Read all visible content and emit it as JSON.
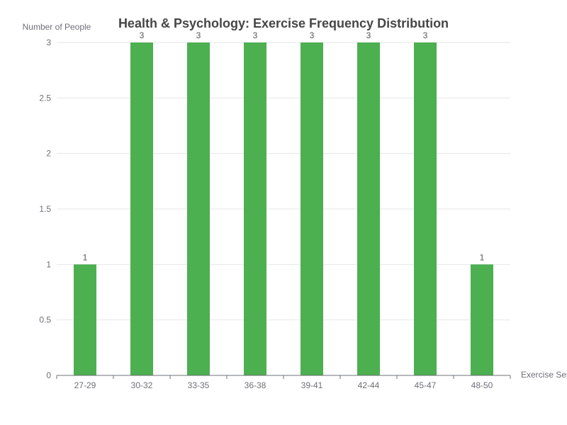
{
  "chart_data": {
    "type": "bar",
    "title": "Health & Psychology: Exercise Frequency Distribution",
    "xlabel": "Exercise Ses",
    "ylabel": "Number of People",
    "categories": [
      "27-29",
      "30-32",
      "33-35",
      "36-38",
      "39-41",
      "42-44",
      "45-47",
      "48-50"
    ],
    "values": [
      1,
      3,
      3,
      3,
      3,
      3,
      3,
      1
    ],
    "ylim": [
      0,
      3
    ],
    "yticks": [
      0,
      0.5,
      1,
      1.5,
      2,
      2.5,
      3
    ],
    "grid": true,
    "legend": "none",
    "data_labels": true,
    "bar_color": "#4caf50",
    "grid_color": "#e6e6e6",
    "axis_color": "#6e7079"
  }
}
